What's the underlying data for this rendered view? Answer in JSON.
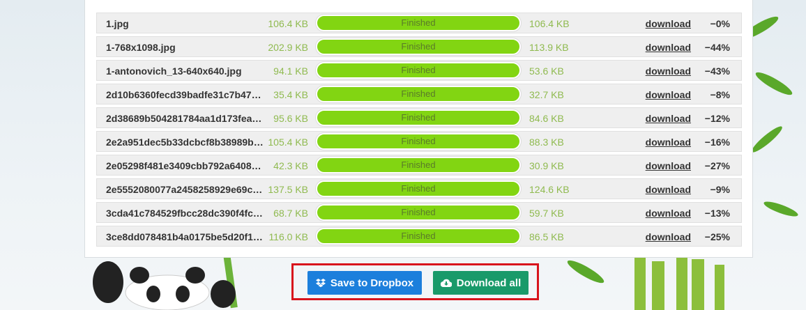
{
  "files": [
    {
      "name": "1.jpg",
      "input_size": "106.4 KB",
      "status": "Finished",
      "output_size": "106.4 KB",
      "download": "download",
      "saving": "−0%"
    },
    {
      "name": "1-768x1098.jpg",
      "input_size": "202.9 KB",
      "status": "Finished",
      "output_size": "113.9 KB",
      "download": "download",
      "saving": "−44%"
    },
    {
      "name": "1-antonovich_13-640x640.jpg",
      "input_size": "94.1 KB",
      "status": "Finished",
      "output_size": "53.6 KB",
      "download": "download",
      "saving": "−43%"
    },
    {
      "name": "2d10b6360fecd39badfe31c7b47…",
      "input_size": "35.4 KB",
      "status": "Finished",
      "output_size": "32.7 KB",
      "download": "download",
      "saving": "−8%"
    },
    {
      "name": "2d38689b504281784aa1d173fea…",
      "input_size": "95.6 KB",
      "status": "Finished",
      "output_size": "84.6 KB",
      "download": "download",
      "saving": "−12%"
    },
    {
      "name": "2e2a951dec5b33dcbcf8b38989b…",
      "input_size": "105.4 KB",
      "status": "Finished",
      "output_size": "88.3 KB",
      "download": "download",
      "saving": "−16%"
    },
    {
      "name": "2e05298f481e3409cbb792a6408…",
      "input_size": "42.3 KB",
      "status": "Finished",
      "output_size": "30.9 KB",
      "download": "download",
      "saving": "−27%"
    },
    {
      "name": "2e5552080077a2458258929e69c…",
      "input_size": "137.5 KB",
      "status": "Finished",
      "output_size": "124.6 KB",
      "download": "download",
      "saving": "−9%"
    },
    {
      "name": "3cda41c784529fbcc28dc390f4fc…",
      "input_size": "68.7 KB",
      "status": "Finished",
      "output_size": "59.7 KB",
      "download": "download",
      "saving": "−13%"
    },
    {
      "name": "3ce8dd078481b4a0175be5d20f1…",
      "input_size": "116.0 KB",
      "status": "Finished",
      "output_size": "86.5 KB",
      "download": "download",
      "saving": "−25%"
    }
  ],
  "actions": {
    "dropbox_label": "Save to Dropbox",
    "download_all_label": "Download all"
  },
  "colors": {
    "progress": "#82d512",
    "dropbox": "#1c7fdc",
    "download_all": "#199a6a",
    "highlight": "#d8141c"
  }
}
